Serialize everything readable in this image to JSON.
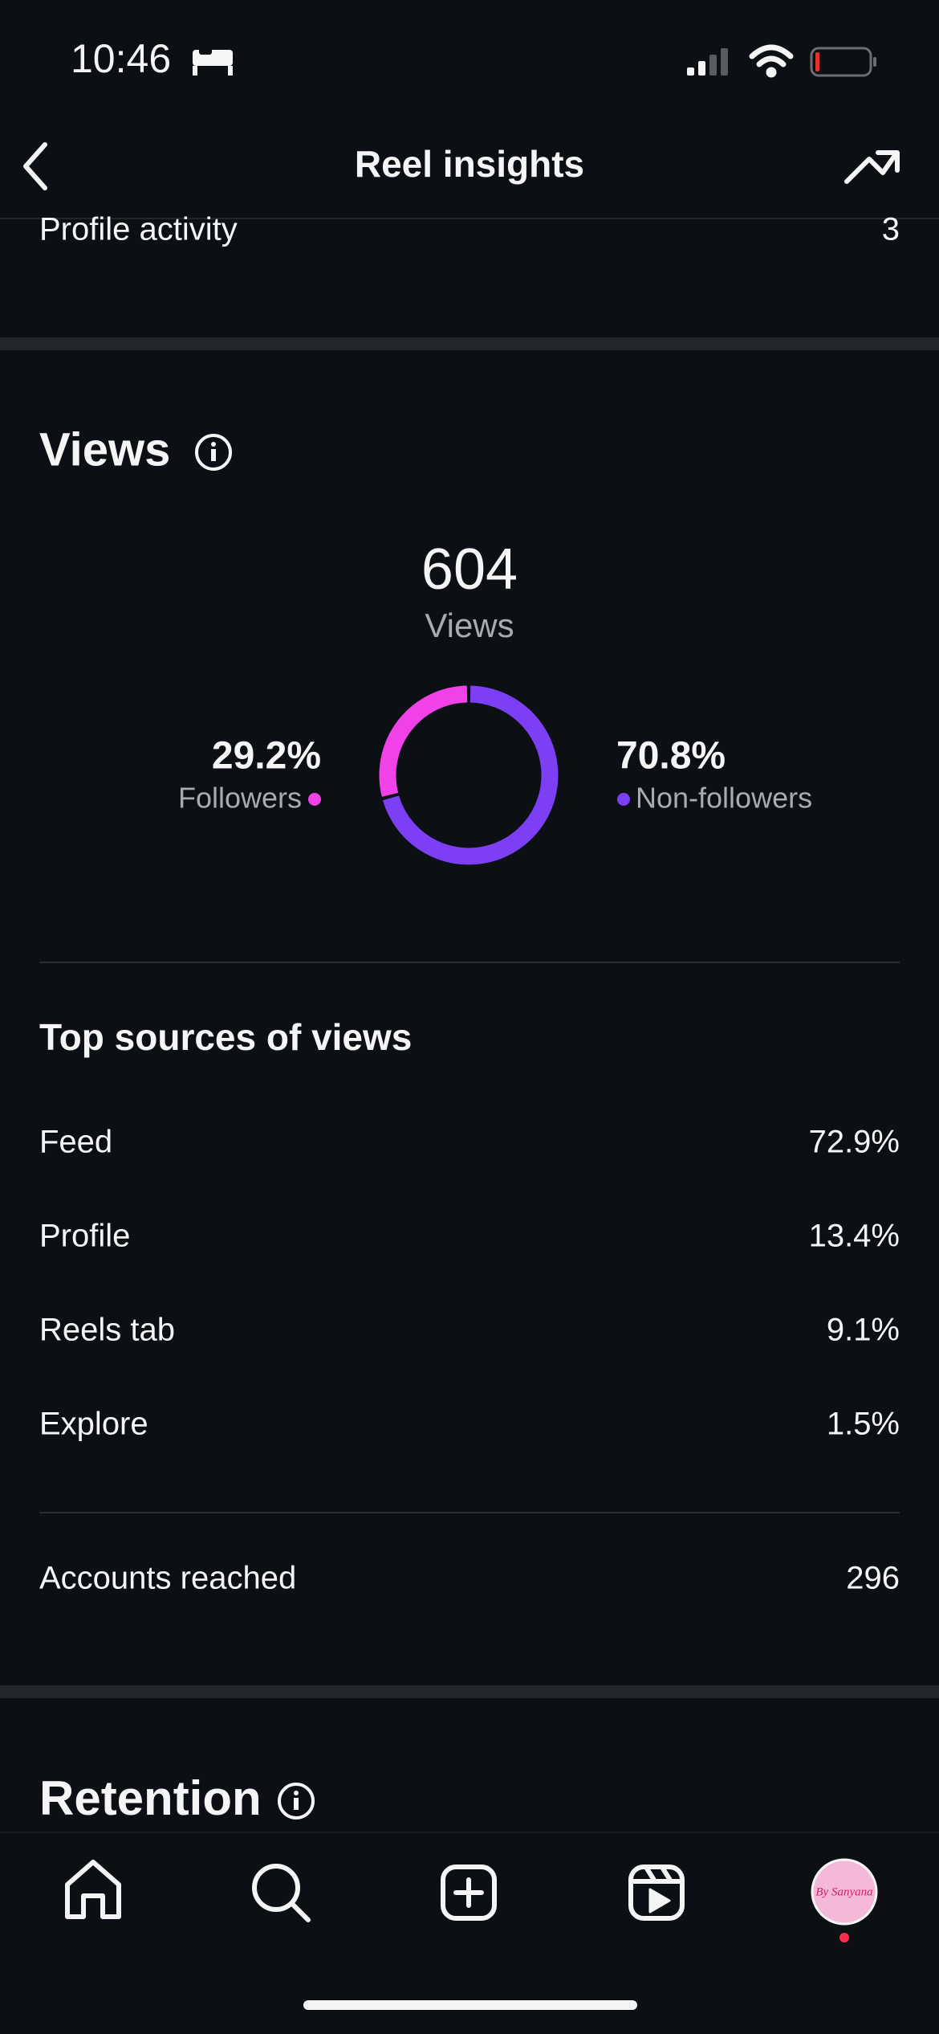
{
  "status_bar": {
    "time": "10:46"
  },
  "header": {
    "title": "Reel insights"
  },
  "profile_activity": {
    "label": "Profile activity",
    "value": "3"
  },
  "views": {
    "title": "Views",
    "total": "604",
    "total_label": "Views",
    "donut": {
      "labels": [
        "Followers",
        "Non-followers"
      ],
      "values": [
        29.2,
        70.8
      ],
      "value_labels": [
        "29.2%",
        "70.8%"
      ],
      "colors": [
        "#f042e8",
        "#7c3ff3"
      ]
    }
  },
  "top_sources": {
    "title": "Top sources of views",
    "rows": [
      [
        "Feed",
        "72.9%"
      ],
      [
        "Profile",
        "13.4%"
      ],
      [
        "Reels tab",
        "9.1%"
      ],
      [
        "Explore",
        "1.5%"
      ]
    ]
  },
  "accounts_reached": {
    "label": "Accounts reached",
    "value": "296"
  },
  "retention": {
    "title": "Retention"
  },
  "tab_bar": {
    "avatar_text": "By Sanyana"
  }
}
